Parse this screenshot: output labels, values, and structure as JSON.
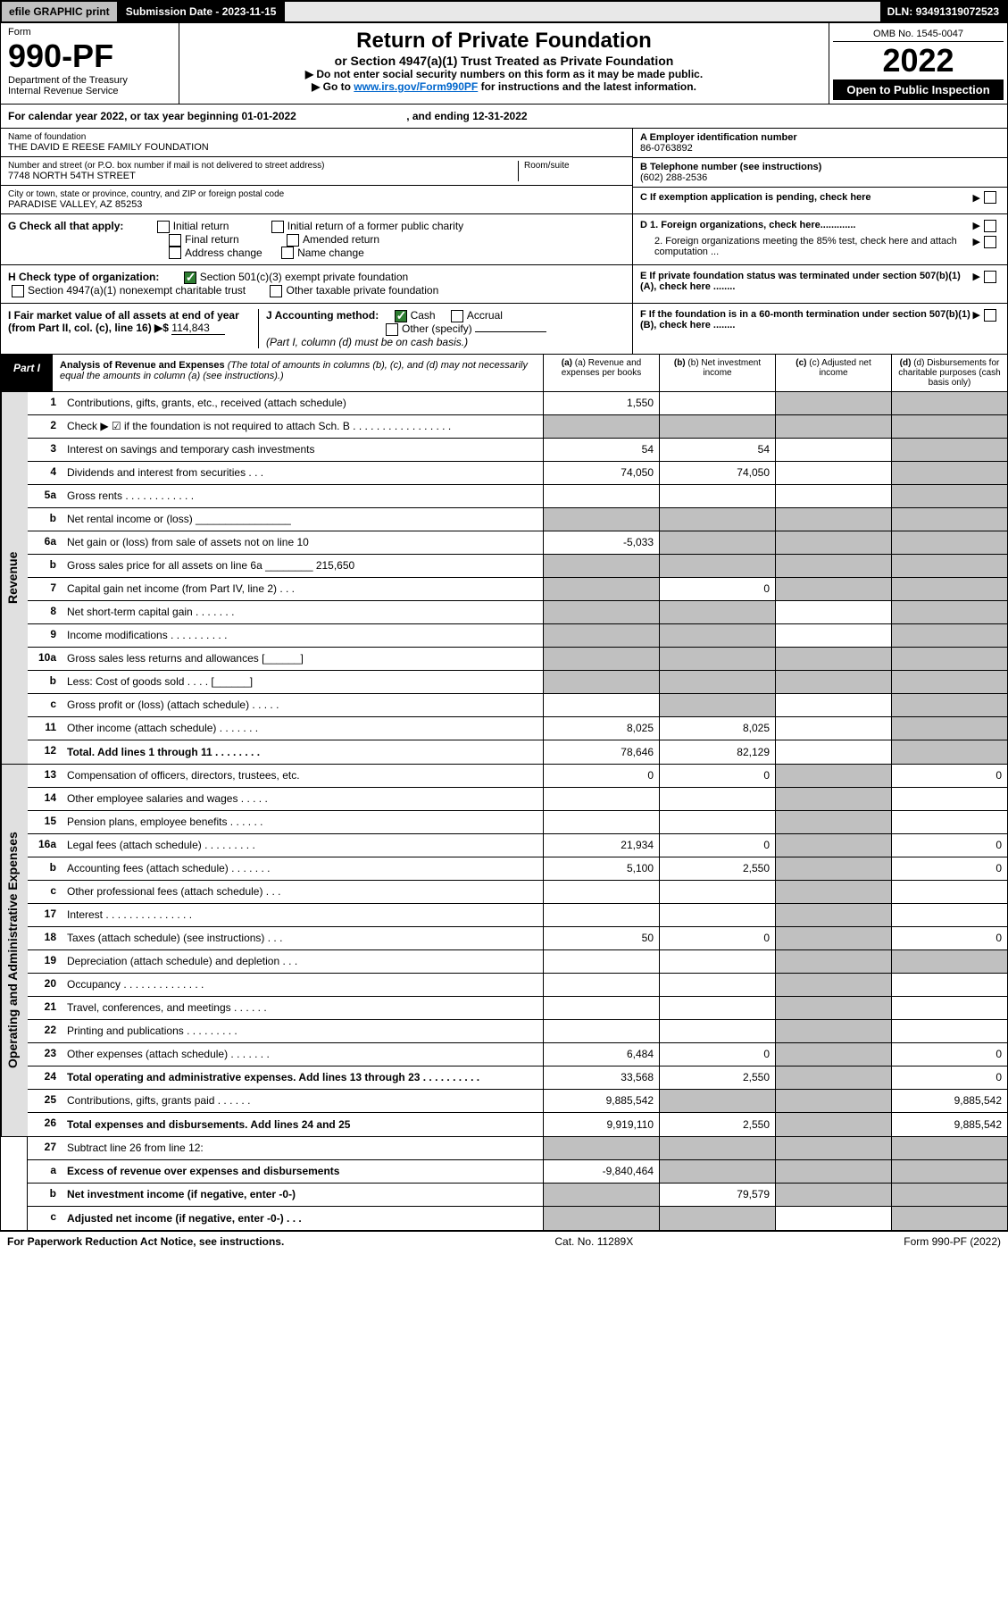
{
  "top": {
    "efile": "efile GRAPHIC print",
    "subdate_lbl": "Submission Date - ",
    "subdate": "2023-11-15",
    "dln_lbl": "DLN: ",
    "dln": "93491319072523"
  },
  "header": {
    "form_word": "Form",
    "form_num": "990-PF",
    "dept": "Department of the Treasury",
    "irs": "Internal Revenue Service",
    "title": "Return of Private Foundation",
    "subtitle": "or Section 4947(a)(1) Trust Treated as Private Foundation",
    "instr1": "▶ Do not enter social security numbers on this form as it may be made public.",
    "instr2_pre": "▶ Go to ",
    "instr2_link": "www.irs.gov/Form990PF",
    "instr2_post": " for instructions and the latest information.",
    "omb": "OMB No. 1545-0047",
    "year": "2022",
    "open": "Open to Public Inspection"
  },
  "cal": {
    "text_a": "For calendar year 2022, or tax year beginning ",
    "begin": "01-01-2022",
    "text_b": ", and ending ",
    "end": "12-31-2022"
  },
  "info": {
    "name_lbl": "Name of foundation",
    "name": "THE DAVID E REESE FAMILY FOUNDATION",
    "addr_lbl": "Number and street (or P.O. box number if mail is not delivered to street address)",
    "addr": "7748 NORTH 54TH STREET",
    "room_lbl": "Room/suite",
    "city_lbl": "City or town, state or province, country, and ZIP or foreign postal code",
    "city": "PARADISE VALLEY, AZ  85253",
    "a_lbl": "A Employer identification number",
    "a_val": "86-0763892",
    "b_lbl": "B Telephone number (see instructions)",
    "b_val": "(602) 288-2536",
    "c_lbl": "C If exemption application is pending, check here",
    "d1": "D 1. Foreign organizations, check here.............",
    "d2": "2. Foreign organizations meeting the 85% test, check here and attach computation ...",
    "e_lbl": "E If private foundation status was terminated under section 507(b)(1)(A), check here ........",
    "f_lbl": "F If the foundation is in a 60-month termination under section 507(b)(1)(B), check here ........"
  },
  "g": {
    "lbl": "G Check all that apply:",
    "o1": "Initial return",
    "o2": "Final return",
    "o3": "Address change",
    "o4": "Initial return of a former public charity",
    "o5": "Amended return",
    "o6": "Name change"
  },
  "h": {
    "lbl": "H Check type of organization:",
    "o1": "Section 501(c)(3) exempt private foundation",
    "o2": "Section 4947(a)(1) nonexempt charitable trust",
    "o3": "Other taxable private foundation"
  },
  "i": {
    "lbl": "I Fair market value of all assets at end of year (from Part II, col. (c), line 16) ▶$ ",
    "val": "114,843"
  },
  "j": {
    "lbl": "J Accounting method:",
    "o1": "Cash",
    "o2": "Accrual",
    "o3": "Other (specify)",
    "note": "(Part I, column (d) must be on cash basis.)"
  },
  "part1": {
    "tab": "Part I",
    "title": "Analysis of Revenue and Expenses",
    "desc": " (The total of amounts in columns (b), (c), and (d) may not necessarily equal the amounts in column (a) (see instructions).)",
    "col_a": "(a) Revenue and expenses per books",
    "col_b": "(b) Net investment income",
    "col_c": "(c) Adjusted net income",
    "col_d": "(d) Disbursements for charitable purposes (cash basis only)"
  },
  "side": {
    "rev": "Revenue",
    "exp": "Operating and Administrative Expenses"
  },
  "rows": [
    {
      "n": "1",
      "l": "Contributions, gifts, grants, etc., received (attach schedule)",
      "a": "1,550",
      "b": "",
      "c": "shaded",
      "d": "shaded"
    },
    {
      "n": "2",
      "l": "Check ▶ ☑ if the foundation is not required to attach Sch. B    .  .  .  .  .  .  .  .  .  .  .  .  .  .  .  .  .",
      "a": "shaded",
      "b": "shaded",
      "c": "shaded",
      "d": "shaded"
    },
    {
      "n": "3",
      "l": "Interest on savings and temporary cash investments",
      "a": "54",
      "b": "54",
      "c": "",
      "d": "shaded"
    },
    {
      "n": "4",
      "l": "Dividends and interest from securities   .   .   .",
      "a": "74,050",
      "b": "74,050",
      "c": "",
      "d": "shaded"
    },
    {
      "n": "5a",
      "l": "Gross rents   .   .   .   .   .   .   .   .   .   .   .   .",
      "a": "",
      "b": "",
      "c": "",
      "d": "shaded"
    },
    {
      "n": "b",
      "l": "Net rental income or (loss)  ________________",
      "a": "shaded",
      "b": "shaded",
      "c": "shaded",
      "d": "shaded"
    },
    {
      "n": "6a",
      "l": "Net gain or (loss) from sale of assets not on line 10",
      "a": "-5,033",
      "b": "shaded",
      "c": "shaded",
      "d": "shaded"
    },
    {
      "n": "b",
      "l": "Gross sales price for all assets on line 6a ________ 215,650",
      "a": "shaded",
      "b": "shaded",
      "c": "shaded",
      "d": "shaded"
    },
    {
      "n": "7",
      "l": "Capital gain net income (from Part IV, line 2)   .   .   .",
      "a": "shaded",
      "b": "0",
      "c": "shaded",
      "d": "shaded"
    },
    {
      "n": "8",
      "l": "Net short-term capital gain   .   .   .   .   .   .   .",
      "a": "shaded",
      "b": "shaded",
      "c": "",
      "d": "shaded"
    },
    {
      "n": "9",
      "l": "Income modifications  .   .   .   .   .   .   .   .   .   .",
      "a": "shaded",
      "b": "shaded",
      "c": "",
      "d": "shaded"
    },
    {
      "n": "10a",
      "l": "Gross sales less returns and allowances  [______]",
      "a": "shaded",
      "b": "shaded",
      "c": "shaded",
      "d": "shaded"
    },
    {
      "n": "b",
      "l": "Less: Cost of goods sold   .   .   .   .   [______]",
      "a": "shaded",
      "b": "shaded",
      "c": "shaded",
      "d": "shaded"
    },
    {
      "n": "c",
      "l": "Gross profit or (loss) (attach schedule)   .   .   .   .   .",
      "a": "",
      "b": "shaded",
      "c": "",
      "d": "shaded"
    },
    {
      "n": "11",
      "l": "Other income (attach schedule)   .   .   .   .   .   .   .",
      "a": "8,025",
      "b": "8,025",
      "c": "",
      "d": "shaded"
    },
    {
      "n": "12",
      "l": "Total. Add lines 1 through 11   .   .   .   .   .   .   .   .",
      "bold": true,
      "a": "78,646",
      "b": "82,129",
      "c": "",
      "d": "shaded"
    }
  ],
  "exp_rows": [
    {
      "n": "13",
      "l": "Compensation of officers, directors, trustees, etc.",
      "a": "0",
      "b": "0",
      "c": "shaded",
      "d": "0"
    },
    {
      "n": "14",
      "l": "Other employee salaries and wages   .   .   .   .   .",
      "a": "",
      "b": "",
      "c": "shaded",
      "d": ""
    },
    {
      "n": "15",
      "l": "Pension plans, employee benefits  .   .   .   .   .   .",
      "a": "",
      "b": "",
      "c": "shaded",
      "d": ""
    },
    {
      "n": "16a",
      "l": "Legal fees (attach schedule) .   .   .   .   .   .   .   .   .",
      "a": "21,934",
      "b": "0",
      "c": "shaded",
      "d": "0"
    },
    {
      "n": "b",
      "l": "Accounting fees (attach schedule)  .   .   .   .   .   .   .",
      "a": "5,100",
      "b": "2,550",
      "c": "shaded",
      "d": "0"
    },
    {
      "n": "c",
      "l": "Other professional fees (attach schedule)   .   .   .",
      "a": "",
      "b": "",
      "c": "shaded",
      "d": ""
    },
    {
      "n": "17",
      "l": "Interest  .   .   .   .   .   .   .   .   .   .   .   .   .   .   .",
      "a": "",
      "b": "",
      "c": "shaded",
      "d": ""
    },
    {
      "n": "18",
      "l": "Taxes (attach schedule) (see instructions)   .   .   .",
      "a": "50",
      "b": "0",
      "c": "shaded",
      "d": "0"
    },
    {
      "n": "19",
      "l": "Depreciation (attach schedule) and depletion   .   .   .",
      "a": "",
      "b": "",
      "c": "shaded",
      "d": "shaded"
    },
    {
      "n": "20",
      "l": "Occupancy .   .   .   .   .   .   .   .   .   .   .   .   .   .",
      "a": "",
      "b": "",
      "c": "shaded",
      "d": ""
    },
    {
      "n": "21",
      "l": "Travel, conferences, and meetings  .   .   .   .   .   .",
      "a": "",
      "b": "",
      "c": "shaded",
      "d": ""
    },
    {
      "n": "22",
      "l": "Printing and publications  .   .   .   .   .   .   .   .   .",
      "a": "",
      "b": "",
      "c": "shaded",
      "d": ""
    },
    {
      "n": "23",
      "l": "Other expenses (attach schedule)  .   .   .   .   .   .   .",
      "a": "6,484",
      "b": "0",
      "c": "shaded",
      "d": "0"
    },
    {
      "n": "24",
      "l": "Total operating and administrative expenses. Add lines 13 through 23   .   .   .   .   .   .   .   .   .   .",
      "bold": true,
      "a": "33,568",
      "b": "2,550",
      "c": "shaded",
      "d": "0"
    },
    {
      "n": "25",
      "l": "Contributions, gifts, grants paid   .   .   .   .   .   .",
      "a": "9,885,542",
      "b": "shaded",
      "c": "shaded",
      "d": "9,885,542"
    },
    {
      "n": "26",
      "l": "Total expenses and disbursements. Add lines 24 and 25",
      "bold": true,
      "a": "9,919,110",
      "b": "2,550",
      "c": "shaded",
      "d": "9,885,542"
    }
  ],
  "final_rows": [
    {
      "n": "27",
      "l": "Subtract line 26 from line 12:",
      "a": "shaded",
      "b": "shaded",
      "c": "shaded",
      "d": "shaded"
    },
    {
      "n": "a",
      "l": "Excess of revenue over expenses and disbursements",
      "bold": true,
      "a": "-9,840,464",
      "b": "shaded",
      "c": "shaded",
      "d": "shaded"
    },
    {
      "n": "b",
      "l": "Net investment income (if negative, enter -0-)",
      "bold": true,
      "a": "shaded",
      "b": "79,579",
      "c": "shaded",
      "d": "shaded"
    },
    {
      "n": "c",
      "l": "Adjusted net income (if negative, enter -0-)   .   .   .",
      "bold": true,
      "a": "shaded",
      "b": "shaded",
      "c": "",
      "d": "shaded"
    }
  ],
  "footer": {
    "left": "For Paperwork Reduction Act Notice, see instructions.",
    "mid": "Cat. No. 11289X",
    "right": "Form 990-PF (2022)"
  }
}
